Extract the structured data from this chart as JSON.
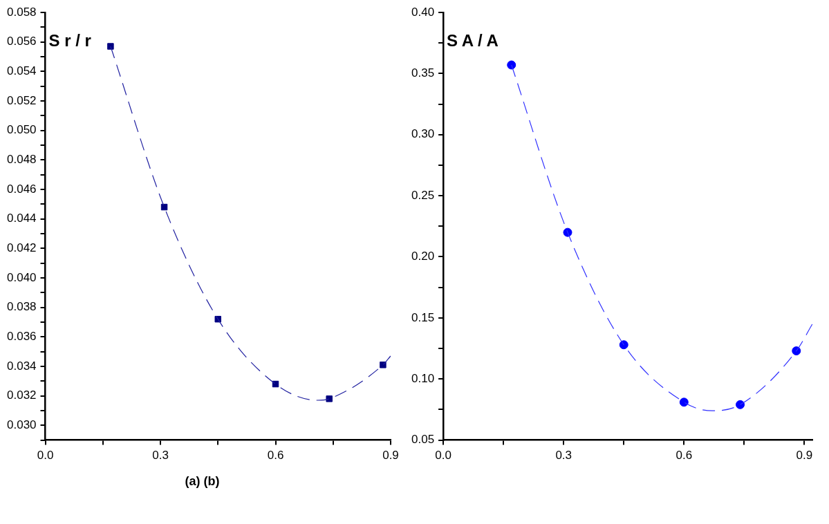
{
  "chart_data": [
    {
      "type": "scatter",
      "ylabel": "S r / r",
      "annotations": [
        "(a) (b)"
      ],
      "grid": false,
      "marker": "square",
      "xlim": [
        0,
        0.9
      ],
      "ylim": [
        0.029,
        0.058
      ],
      "xticks": [
        {
          "value": 0,
          "label": "0.0"
        },
        {
          "value": 0.15,
          "label": null
        },
        0.3,
        {
          "value": 0.45,
          "label": null
        },
        0.6,
        {
          "value": 0.75,
          "label": null
        },
        0.9
      ],
      "yticks": [
        {
          "value": 0.029,
          "label": null
        },
        {
          "value": 0.03,
          "label": "0.030"
        },
        {
          "value": 0.031,
          "label": null
        },
        0.032,
        {
          "value": 0.033,
          "label": null
        },
        0.034,
        {
          "value": 0.035,
          "label": null
        },
        0.036,
        {
          "value": 0.037,
          "label": null
        },
        0.038,
        {
          "value": 0.039,
          "label": null
        },
        {
          "value": 0.04,
          "label": "0.040"
        },
        {
          "value": 0.041,
          "label": null
        },
        0.042,
        {
          "value": 0.043,
          "label": null
        },
        0.044,
        {
          "value": 0.045,
          "label": null
        },
        0.046,
        {
          "value": 0.047,
          "label": null
        },
        0.048,
        {
          "value": 0.049,
          "label": null
        },
        {
          "value": 0.05,
          "label": "0.050"
        },
        {
          "value": 0.051,
          "label": null
        },
        0.052,
        {
          "value": 0.053,
          "label": null
        },
        0.054,
        {
          "value": 0.055,
          "label": null
        },
        0.056,
        {
          "value": 0.057,
          "label": null
        },
        0.058
      ],
      "series": [
        {
          "color": "#000080",
          "x": [
            0.17,
            0.31,
            0.45,
            0.6,
            0.74,
            0.88
          ],
          "values": [
            0.0557,
            0.0448,
            0.0372,
            0.0328,
            0.0318,
            0.0341
          ]
        },
        {
          "type": "line",
          "marker": "none",
          "line_style": "dashed",
          "color": "#2020a0",
          "x": [
            0.17,
            0.31,
            0.45,
            0.6,
            0.71,
            0.74,
            0.88,
            0.9
          ],
          "values": [
            0.0557,
            0.0448,
            0.0372,
            0.0328,
            0.0317,
            0.0318,
            0.0341,
            0.0347
          ]
        }
      ]
    },
    {
      "type": "scatter",
      "ylabel": "S A / A",
      "grid": false,
      "marker": "circle",
      "xlim": [
        0,
        0.92
      ],
      "ylim": [
        0.05,
        0.4
      ],
      "xticks": [
        {
          "value": 0,
          "label": "0.0"
        },
        {
          "value": 0.15,
          "label": null
        },
        0.3,
        {
          "value": 0.45,
          "label": null
        },
        0.6,
        {
          "value": 0.75,
          "label": null
        },
        0.9
      ],
      "yticks": [
        0.05,
        {
          "value": 0.075,
          "label": null
        },
        {
          "value": 0.1,
          "label": "0.10"
        },
        {
          "value": 0.125,
          "label": null
        },
        0.15,
        {
          "value": 0.175,
          "label": null
        },
        {
          "value": 0.2,
          "label": "0.20"
        },
        {
          "value": 0.225,
          "label": null
        },
        0.25,
        {
          "value": 0.275,
          "label": null
        },
        {
          "value": 0.3,
          "label": "0.30"
        },
        {
          "value": 0.325,
          "label": null
        },
        0.35,
        {
          "value": 0.375,
          "label": null
        },
        {
          "value": 0.4,
          "label": "0.40"
        }
      ],
      "series": [
        {
          "color": "#0000ff",
          "x": [
            0.17,
            0.31,
            0.45,
            0.6,
            0.74,
            0.88
          ],
          "values": [
            0.357,
            0.22,
            0.128,
            0.081,
            0.079,
            0.123
          ]
        },
        {
          "type": "line",
          "marker": "none",
          "line_style": "dashed",
          "color": "#3030ff",
          "x": [
            0.17,
            0.31,
            0.45,
            0.6,
            0.67,
            0.74,
            0.88,
            0.92
          ],
          "values": [
            0.357,
            0.22,
            0.128,
            0.081,
            0.074,
            0.079,
            0.123,
            0.145
          ]
        }
      ]
    }
  ]
}
